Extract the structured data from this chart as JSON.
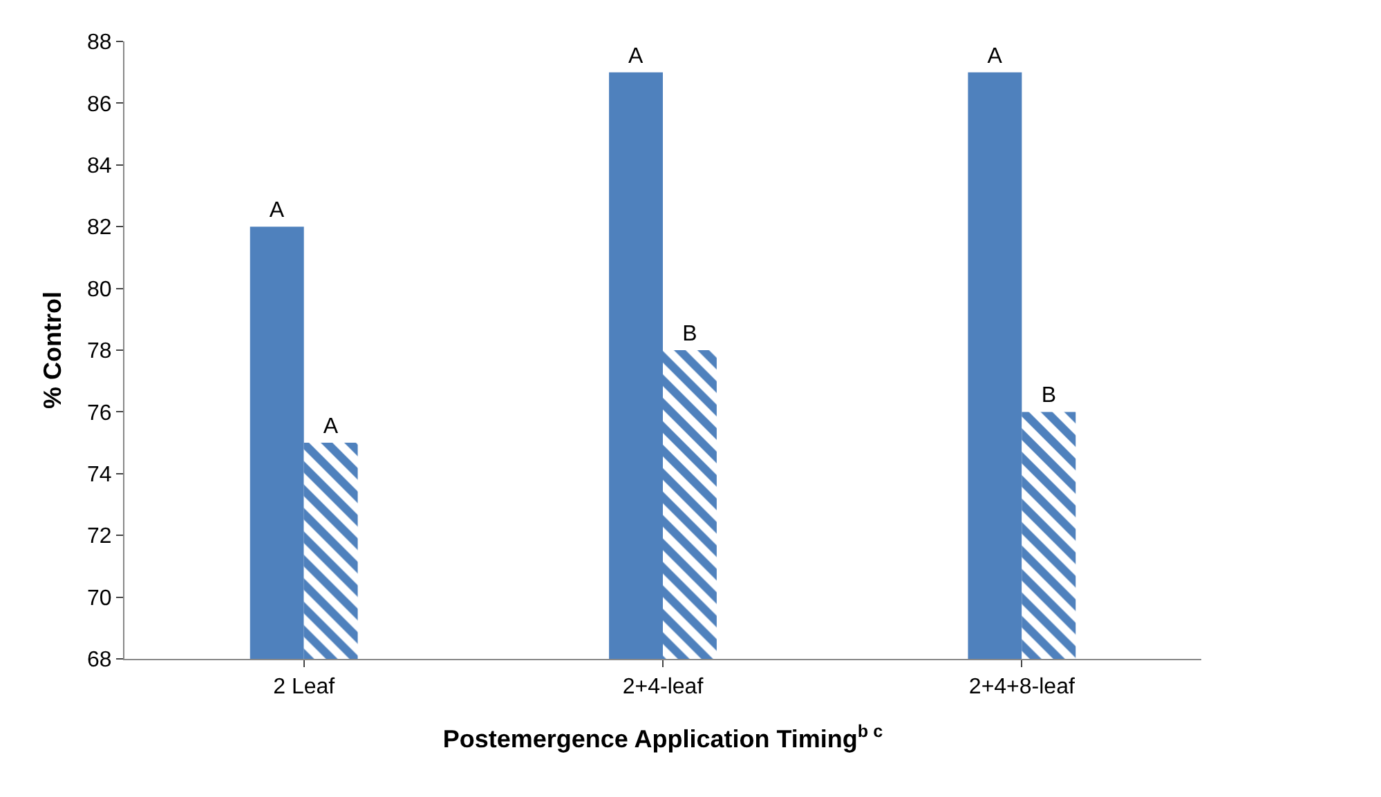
{
  "chart_data": {
    "type": "bar",
    "xlabel": "Postemergence Application Timing$^{b c}$",
    "ylabel": "% Control",
    "categories": [
      "2 Leaf",
      "2+4-leaf",
      "2+4+8-leaf"
    ],
    "series": [
      {
        "color": "#4f81bd",
        "values": [
          82,
          87,
          87
        ],
        "value_labels": [
          "A",
          "A",
          "A"
        ]
      },
      {
        "color": "#4f81bd",
        "values": [
          75,
          78,
          76
        ],
        "value_labels": [
          "A",
          "B",
          "B"
        ]
      }
    ],
    "ylim": [
      68,
      88
    ],
    "yticks": [
      68,
      70,
      72,
      74,
      76,
      78,
      80,
      82,
      84,
      86,
      88
    ]
  }
}
